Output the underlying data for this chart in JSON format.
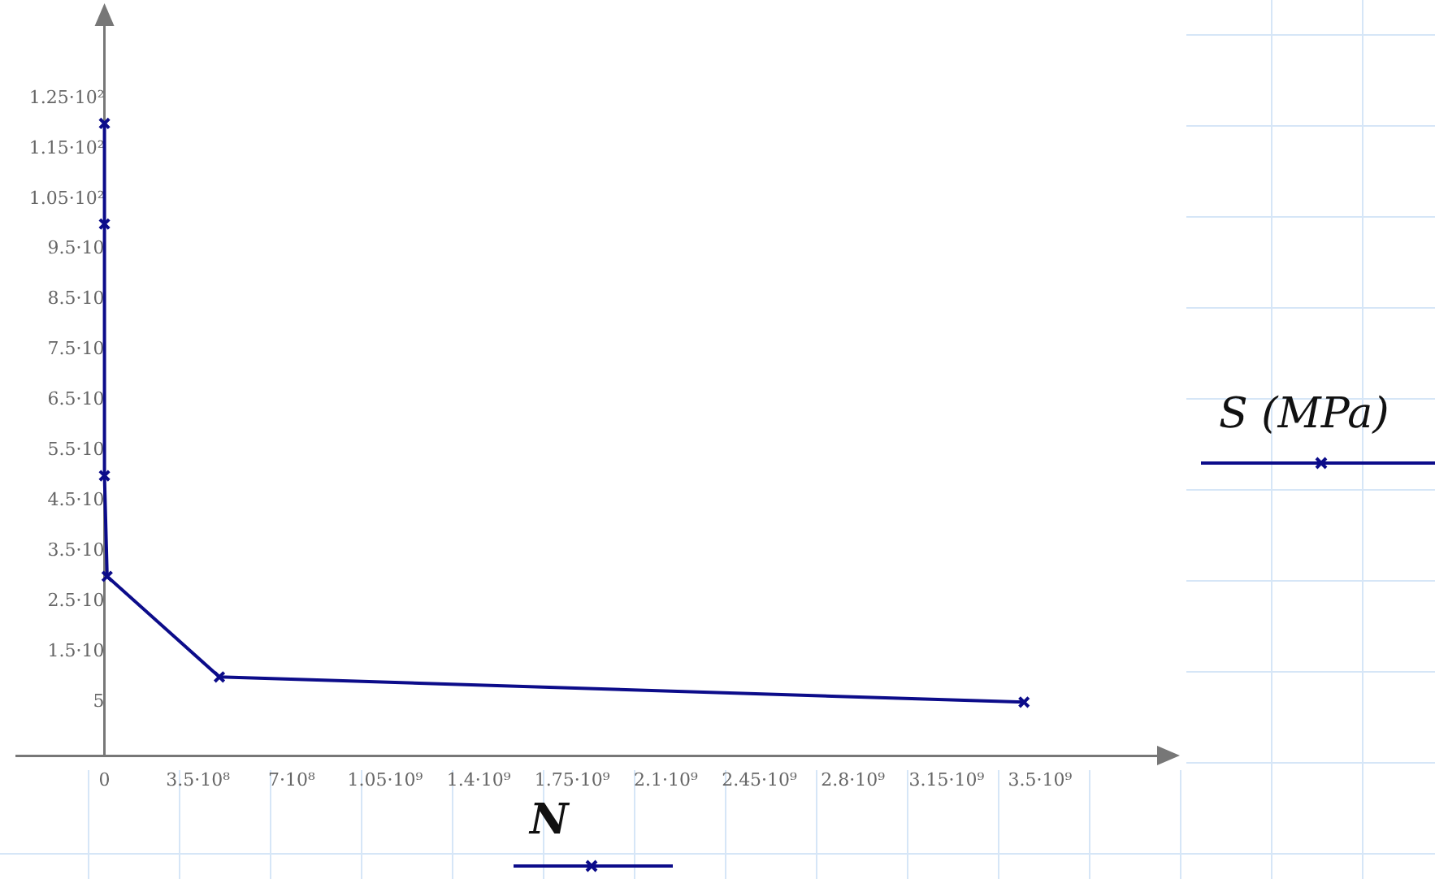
{
  "chart_data": {
    "type": "line",
    "xlabel": "N",
    "ylabel": "S (MPa)",
    "x": [
      0,
      0,
      0,
      10000000,
      430000000,
      3440000000
    ],
    "series": [
      {
        "color": "#0c0c8a",
        "values": [
          120,
          100,
          50,
          30,
          10,
          5
        ]
      }
    ],
    "xlim": [
      -330000000,
      3950000000
    ],
    "ylim": [
      -5.6,
      140
    ],
    "xticks": [
      0,
      {
        "value": 350000000,
        "label": "3.5·10⁸"
      },
      {
        "value": 700000000,
        "label": "7·10⁸"
      },
      {
        "value": 1050000000,
        "label": "1.05·10⁹"
      },
      {
        "value": 1400000000,
        "label": "1.4·10⁹"
      },
      {
        "value": 1750000000,
        "label": "1.75·10⁹"
      },
      {
        "value": 2100000000,
        "label": "2.1·10⁹"
      },
      {
        "value": 2450000000,
        "label": "2.45·10⁹"
      },
      {
        "value": 2800000000,
        "label": "2.8·10⁹"
      },
      {
        "value": 3150000000,
        "label": "3.15·10⁹"
      },
      {
        "value": 3500000000,
        "label": "3.5·10⁹"
      }
    ],
    "yticks": [
      5,
      {
        "value": 15,
        "label": "1.5·10"
      },
      {
        "value": 25,
        "label": "2.5·10"
      },
      {
        "value": 35,
        "label": "3.5·10"
      },
      {
        "value": 45,
        "label": "4.5·10"
      },
      {
        "value": 55,
        "label": "5.5·10"
      },
      {
        "value": 65,
        "label": "6.5·10"
      },
      {
        "value": 75,
        "label": "7.5·10"
      },
      {
        "value": 85,
        "label": "8.5·10"
      },
      {
        "value": 95,
        "label": "9.5·10"
      },
      {
        "value": 105,
        "label": "1.05·10²"
      },
      {
        "value": 115,
        "label": "1.15·10²"
      },
      {
        "value": 125,
        "label": "1.25·10²"
      }
    ],
    "grid": false,
    "legend": false,
    "marker": "cross",
    "line_style": "solid"
  }
}
